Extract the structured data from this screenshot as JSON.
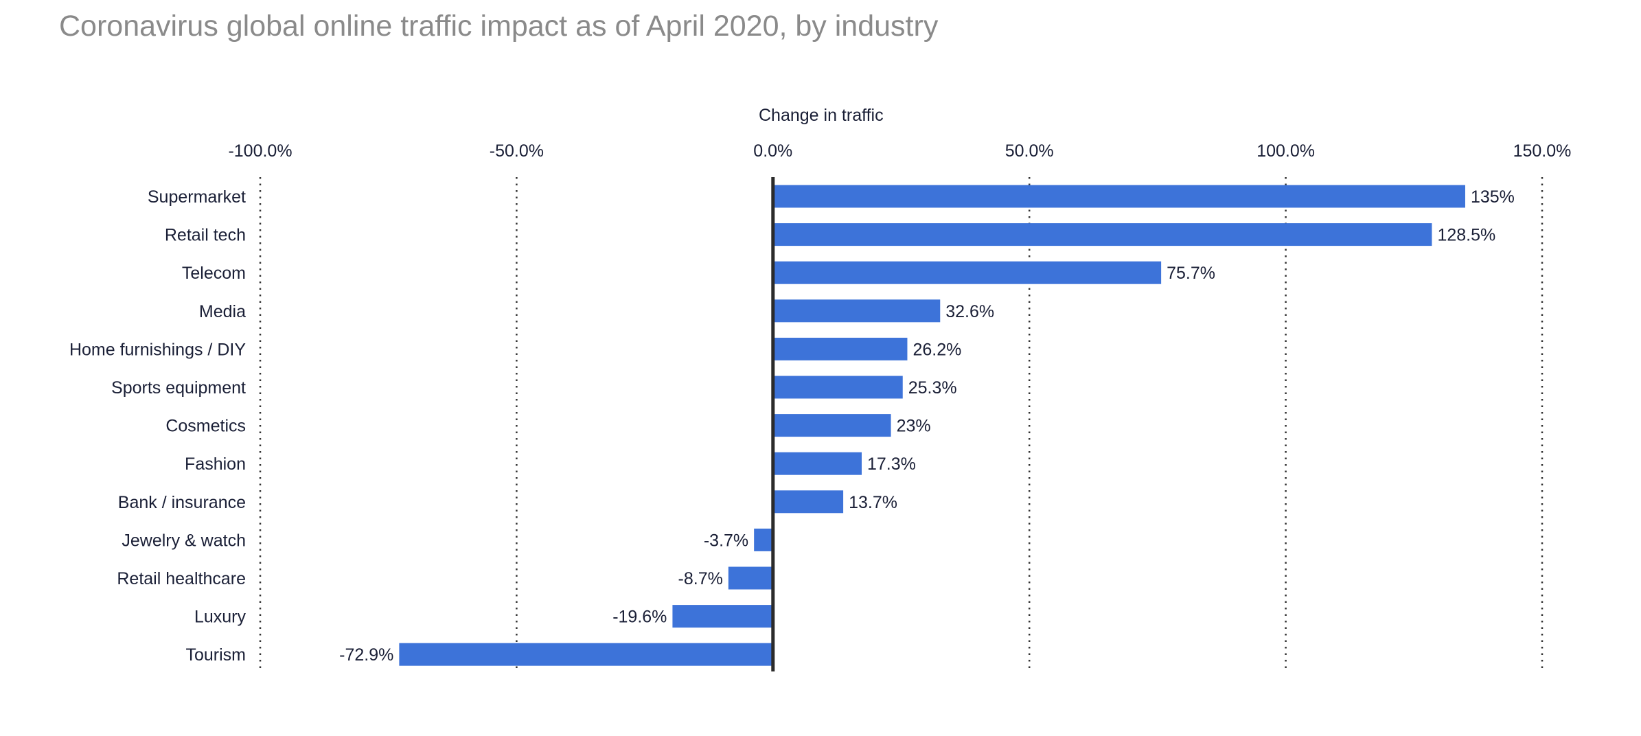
{
  "chart_data": {
    "type": "bar",
    "orientation": "horizontal",
    "title": "Coronavirus global online traffic impact as of April 2020, by industry",
    "xlabel": "Change in traffic",
    "ylabel": "",
    "xlim": [
      -100,
      150
    ],
    "xticks": [
      -100,
      -50,
      0,
      50,
      100,
      150
    ],
    "xtick_labels": [
      "-100.0%",
      "-50.0%",
      "0.0%",
      "50.0%",
      "100.0%",
      "150.0%"
    ],
    "grid": "vertical dotted",
    "bar_color": "#3d73d9",
    "categories": [
      "Supermarket",
      "Retail tech",
      "Telecom",
      "Media",
      "Home furnishings / DIY",
      "Sports equipment",
      "Cosmetics",
      "Fashion",
      "Bank / insurance",
      "Jewelry & watch",
      "Retail healthcare",
      "Luxury",
      "Tourism"
    ],
    "values": [
      135,
      128.5,
      75.7,
      32.6,
      26.2,
      25.3,
      23,
      17.3,
      13.7,
      -3.7,
      -8.7,
      -19.6,
      -72.9
    ],
    "data_labels": [
      "135%",
      "128.5%",
      "75.7%",
      "32.6%",
      "26.2%",
      "25.3%",
      "23%",
      "17.3%",
      "13.7%",
      "-3.7%",
      "-8.7%",
      "-19.6%",
      "-72.9%"
    ]
  }
}
